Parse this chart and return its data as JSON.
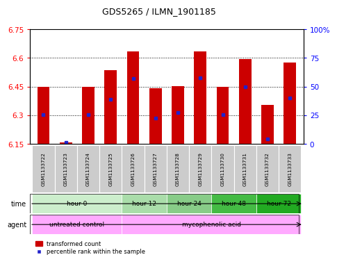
{
  "title": "GDS5265 / ILMN_1901185",
  "samples": [
    "GSM1133722",
    "GSM1133723",
    "GSM1133724",
    "GSM1133725",
    "GSM1133726",
    "GSM1133727",
    "GSM1133728",
    "GSM1133729",
    "GSM1133730",
    "GSM1133731",
    "GSM1133732",
    "GSM1133733"
  ],
  "bar_tops": [
    6.45,
    6.157,
    6.45,
    6.535,
    6.635,
    6.442,
    6.452,
    6.635,
    6.45,
    6.595,
    6.355,
    6.577
  ],
  "bar_base": 6.15,
  "blue_positions": [
    6.302,
    6.157,
    6.305,
    6.385,
    6.492,
    6.285,
    6.315,
    6.495,
    6.302,
    6.45,
    6.177,
    6.392
  ],
  "ylim": [
    6.15,
    6.75
  ],
  "yticks_left": [
    6.15,
    6.3,
    6.45,
    6.6,
    6.75
  ],
  "yticks_right_pct": [
    0,
    25,
    50,
    75,
    100
  ],
  "ytick_labels_right": [
    "0",
    "25",
    "50",
    "75",
    "100%"
  ],
  "bar_color": "#cc0000",
  "blue_color": "#2222cc",
  "time_groups": [
    {
      "label": "hour 0",
      "start": 0,
      "end": 4,
      "color": "#cceecc"
    },
    {
      "label": "hour 12",
      "start": 4,
      "end": 6,
      "color": "#aaddaa"
    },
    {
      "label": "hour 24",
      "start": 6,
      "end": 8,
      "color": "#88cc88"
    },
    {
      "label": "hour 48",
      "start": 8,
      "end": 10,
      "color": "#44bb44"
    },
    {
      "label": "hour 72",
      "start": 10,
      "end": 12,
      "color": "#22aa22"
    }
  ],
  "agent_groups": [
    {
      "label": "untreated control",
      "start": 0,
      "end": 4,
      "color": "#ffaaff"
    },
    {
      "label": "mycophenolic acid",
      "start": 4,
      "end": 12,
      "color": "#ffaaff"
    }
  ],
  "sample_bg": "#cccccc",
  "bg_color": "#ffffff",
  "legend_bar": "transformed count",
  "legend_dot": "percentile rank within the sample"
}
